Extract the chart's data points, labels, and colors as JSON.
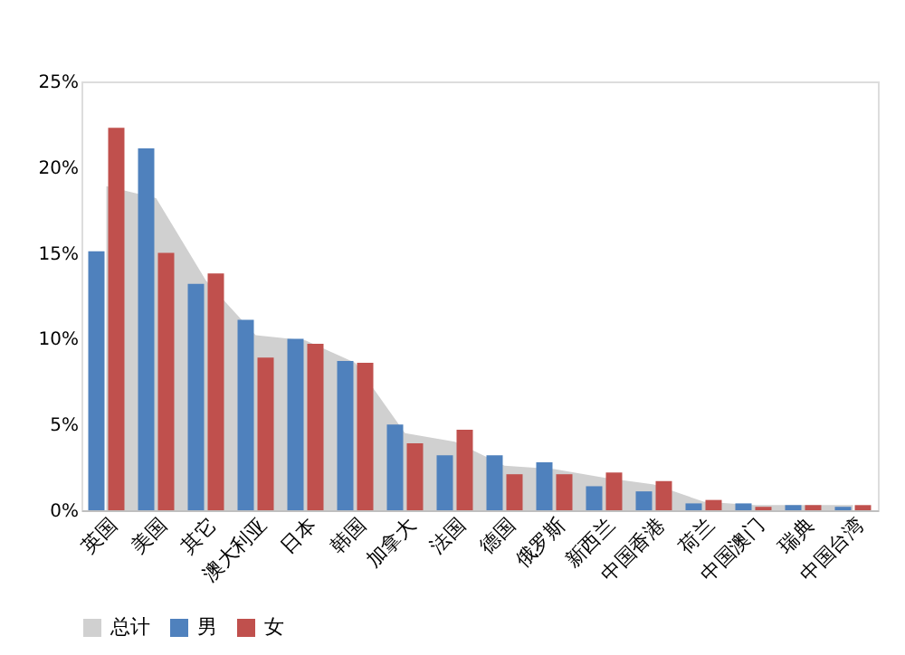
{
  "chart_data": {
    "type": "bar",
    "categories": [
      "英国",
      "美国",
      "其它",
      "澳大利亚",
      "日本",
      "韩国",
      "加拿大",
      "法国",
      "德国",
      "俄罗斯",
      "新西兰",
      "中国香港",
      "荷兰",
      "中国澳门",
      "瑞典",
      "中国台湾"
    ],
    "series": [
      {
        "name": "总计",
        "type": "area",
        "color": "#d0d0d0",
        "values": [
          18.9,
          18.2,
          13.4,
          10.2,
          9.9,
          8.6,
          4.5,
          4.0,
          2.6,
          2.4,
          1.9,
          1.5,
          0.5,
          0.3,
          0.3,
          0.3
        ]
      },
      {
        "name": "男",
        "color": "#4f81bd",
        "values": [
          15.1,
          21.1,
          13.2,
          11.1,
          10.0,
          8.7,
          5.0,
          3.2,
          3.2,
          2.8,
          1.4,
          1.1,
          0.4,
          0.4,
          0.3,
          0.2
        ]
      },
      {
        "name": "女",
        "color": "#c0504d",
        "values": [
          22.3,
          15.0,
          13.8,
          8.9,
          9.7,
          8.6,
          3.9,
          4.7,
          2.1,
          2.1,
          2.2,
          1.7,
          0.6,
          0.2,
          0.3,
          0.3
        ]
      }
    ],
    "ylim": [
      0,
      25
    ],
    "yticks": [
      {
        "value": 0,
        "label": "0%"
      },
      {
        "value": 5,
        "label": "5%"
      },
      {
        "value": 10,
        "label": "10%"
      },
      {
        "value": 15,
        "label": "15%"
      },
      {
        "value": 20,
        "label": "20%"
      },
      {
        "value": 25,
        "label": "25%"
      }
    ],
    "grid": false,
    "legend": "bottom"
  }
}
